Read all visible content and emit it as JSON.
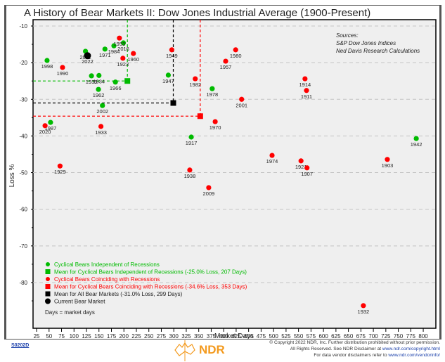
{
  "chart_data": {
    "type": "scatter",
    "title": "A History of Bear Markets II: Dow Jones Industrial Average (1900-Present)",
    "xlabel": "Market Days",
    "ylabel": "Loss %",
    "xlim": [
      10,
      810
    ],
    "ylim": [
      -90,
      -8
    ],
    "xticks": [
      25,
      50,
      75,
      100,
      125,
      150,
      175,
      200,
      225,
      250,
      275,
      300,
      325,
      350,
      375,
      400,
      425,
      450,
      475,
      500,
      525,
      550,
      575,
      600,
      625,
      650,
      675,
      700,
      725,
      750,
      775,
      800
    ],
    "yticks": [
      -10,
      -20,
      -30,
      -40,
      -50,
      -60,
      -70,
      -80
    ],
    "grid": "horizontal dashed",
    "legend_position": "bottom-left",
    "series": [
      {
        "name": "Cyclical Bears Independent of Recessions",
        "color": "#00bb00",
        "marker": "circle",
        "points": [
          {
            "label": "1998",
            "x": 46,
            "y": -19.4
          },
          {
            "label": "2011",
            "x": 123,
            "y": -16.9
          },
          {
            "label": "1971",
            "x": 162,
            "y": -16.3
          },
          {
            "label": "1984",
            "x": 180,
            "y": -15.4
          },
          {
            "label": "2016",
            "x": 199,
            "y": -14.6
          },
          {
            "label": "1939",
            "x": 135,
            "y": -23.6
          },
          {
            "label": "1934",
            "x": 150,
            "y": -23.5
          },
          {
            "label": "1966",
            "x": 183,
            "y": -25.3
          },
          {
            "label": "1962",
            "x": 149,
            "y": -27.3
          },
          {
            "label": "2002",
            "x": 157,
            "y": -31.7
          },
          {
            "label": "1947",
            "x": 289,
            "y": -23.4
          },
          {
            "label": "1978",
            "x": 377,
            "y": -27.1
          },
          {
            "label": "1987",
            "x": 53,
            "y": -36.3
          },
          {
            "label": "1917",
            "x": 335,
            "y": -40.3
          },
          {
            "label": "1942",
            "x": 786,
            "y": -40.7
          }
        ]
      },
      {
        "name": "Cyclical Bears Coinciding with Recessions",
        "color": "#ff0000",
        "marker": "circle",
        "points": [
          {
            "label": "1953",
            "x": 191,
            "y": -13.3
          },
          {
            "label": "1960",
            "x": 219,
            "y": -17.5
          },
          {
            "label": "1923",
            "x": 198,
            "y": -18.8
          },
          {
            "label": "1990",
            "x": 77,
            "y": -21.3
          },
          {
            "label": "1949",
            "x": 296,
            "y": -16.5
          },
          {
            "label": "1982",
            "x": 343,
            "y": -24.4
          },
          {
            "label": "1980",
            "x": 424,
            "y": -16.5
          },
          {
            "label": "1957",
            "x": 404,
            "y": -19.6
          },
          {
            "label": "2001",
            "x": 436,
            "y": -30.0
          },
          {
            "label": "1914",
            "x": 563,
            "y": -24.4
          },
          {
            "label": "1911",
            "x": 566,
            "y": -27.6
          },
          {
            "label": "2020",
            "x": 42,
            "y": -37.2
          },
          {
            "label": "1933",
            "x": 154,
            "y": -37.4
          },
          {
            "label": "1970",
            "x": 383,
            "y": -36.1
          },
          {
            "label": "1929",
            "x": 72,
            "y": -48.2
          },
          {
            "label": "1938",
            "x": 332,
            "y": -49.3
          },
          {
            "label": "2009",
            "x": 370,
            "y": -54.1
          },
          {
            "label": "1974",
            "x": 497,
            "y": -45.3
          },
          {
            "label": "1921",
            "x": 555,
            "y": -46.8
          },
          {
            "label": "1907",
            "x": 567,
            "y": -48.7
          },
          {
            "label": "1903",
            "x": 728,
            "y": -46.4
          },
          {
            "label": "1932",
            "x": 680,
            "y": -86.3
          }
        ]
      },
      {
        "name": "Current Bear Market",
        "color": "#000000",
        "marker": "circle",
        "points": [
          {
            "label": "2022",
            "x": 127,
            "y": -18.1
          }
        ]
      }
    ],
    "means": [
      {
        "name": "Mean for Cyclical Bears Independent of Recessions (-25.0% Loss, 207 Days)",
        "x": 207,
        "y": -25.0,
        "color": "#00bb00"
      },
      {
        "name": "Mean for Cyclical Bears Coinciding with Recessions (-34.6% Loss, 353 Days)",
        "x": 353,
        "y": -34.6,
        "color": "#ff0000"
      },
      {
        "name": "Mean for All Bear Markets (-31.0% Loss, 299 Days)",
        "x": 299,
        "y": -31.0,
        "color": "#000000"
      }
    ],
    "legend": [
      {
        "text": "Cyclical Bears Independent of Recessions",
        "color": "#00bb00",
        "marker": "circle"
      },
      {
        "text": "Mean for Cyclical Bears Independent of Recessions (-25.0% Loss, 207 Days)",
        "color": "#00bb00",
        "marker": "square"
      },
      {
        "text": "Cyclical Bears Coinciding with Recessions",
        "color": "#ff0000",
        "marker": "circle"
      },
      {
        "text": "Mean for Cyclical Bears Coinciding with Recessions (-34.6% Loss, 353 Days)",
        "color": "#ff0000",
        "marker": "square"
      },
      {
        "text": "Mean for All Bear Markets (-31.0% Loss, 299 Days)",
        "color": "#000000",
        "marker": "square"
      },
      {
        "text": "Current Bear Market",
        "color": "#000000",
        "marker": "bigcircle"
      }
    ],
    "legend_note": "Days = market days",
    "sources": [
      "Sources:",
      "S&P Dow Jones Indices",
      "Ned Davis Research Calculations"
    ]
  },
  "footer": {
    "code": "S0202D",
    "brand": "NDR",
    "copyright_line1": "© Copyright 2022 NDR, Inc. Further distribution prohibited without prior permission.",
    "copyright_line2_text": "All Rights Reserved. See NDR Disclaimer at ",
    "copyright_line2_link": "www.ndr.com/copyright.html",
    "copyright_line3_text": "For data vendor disclaimers refer to ",
    "copyright_line3_link": "www.ndr.com/vendorinfo/"
  }
}
